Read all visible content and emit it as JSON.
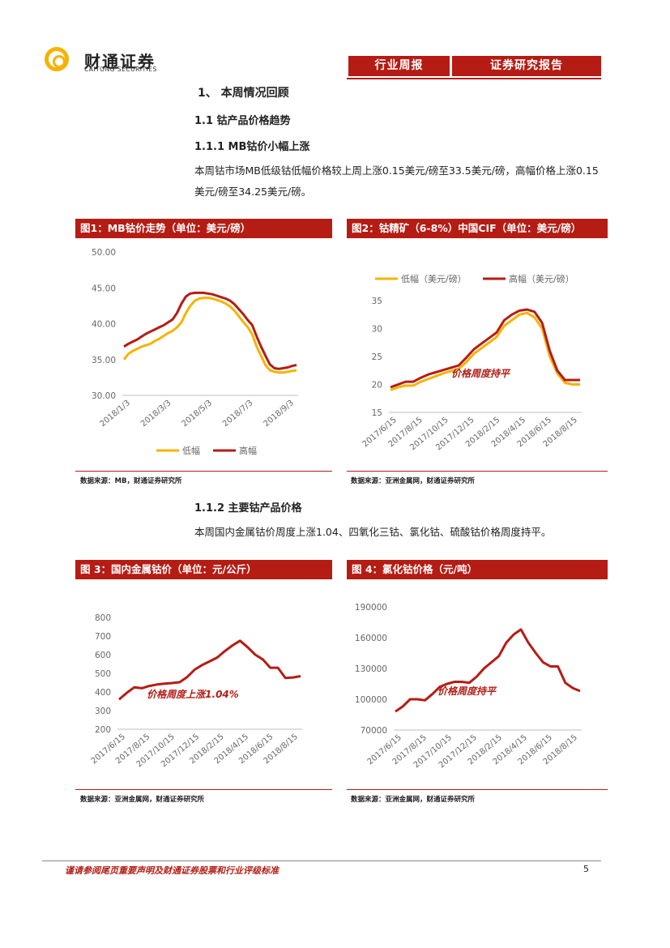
{
  "header": {
    "logo_cn": "财通证券",
    "logo_en": "CAITONG SECURITIES",
    "tab1": "行业周报",
    "tab2": "证券研究报告"
  },
  "section": {
    "h1": "1、 本周情况回顾",
    "h2": "1.1  钴产品价格趋势",
    "h3a": "1.1.1  MB钴价小幅上涨",
    "para1": "本周钴市场MB低级钴低幅价格较上周上涨0.15美元/磅至33.5美元/磅，高幅价格上涨0.15美元/磅至34.25美元/磅。",
    "h3b": "1.1.2  主要钴产品价格",
    "para2": "本周国内金属钴价周度上涨1.04、四氧化三钴、氯化钴、硫酸钴价格周度持平。"
  },
  "figures": {
    "fig1_title": "图1：MB钴价走势（单位：美元/磅）",
    "fig2_title": "图2：钴精矿（6-8%）中国CIF（单位：美元/磅）",
    "fig3_title": "图 3：国内金属钴价（单位：元/公斤）",
    "fig4_title": "图 4：氯化钴价格（元/吨）",
    "src1": "数据来源：MB，财通证券研究所",
    "src2": "数据来源：亚洲金属网，财通证券研究所",
    "src3": "数据来源：亚洲金属网，财通证券研究所",
    "src4": "数据来源：亚洲金属网，财通证券研究所"
  },
  "colors": {
    "accent": "#b51c14",
    "gold": "#f5b300",
    "grid": "#d9d9d9"
  },
  "chart_data": [
    {
      "id": "c1",
      "type": "line",
      "title": "图1：MB钴价走势（单位：美元/磅）",
      "ylim": [
        30,
        50
      ],
      "yticks": [
        30,
        35,
        40,
        45,
        50
      ],
      "ytick_labels": [
        "30.00",
        "35.00",
        "40.00",
        "45.00",
        "50.00"
      ],
      "xtick_labels": [
        "2018/1/3",
        "2018/3/3",
        "2018/5/3",
        "2018/7/3",
        "2018/9/3"
      ],
      "legend": "bottom",
      "series": [
        {
          "name": "低幅",
          "color": "#f5b300",
          "values": [
            35,
            35.8,
            36.2,
            36.5,
            36.8,
            37,
            37.2,
            37.6,
            37.9,
            38.3,
            38.7,
            39,
            39.5,
            40.2,
            41.5,
            42.5,
            43.2,
            43.5,
            43.6,
            43.6,
            43.5,
            43.3,
            43.1,
            42.8,
            42.4,
            41.8,
            41,
            40.2,
            39.5,
            38.5,
            36.8,
            35.5,
            34.2,
            33.5,
            33.3,
            33.2,
            33.2,
            33.3,
            33.4,
            33.5
          ]
        },
        {
          "name": "高幅",
          "color": "#b51c14",
          "values": [
            36.8,
            37.2,
            37.5,
            37.8,
            38.2,
            38.6,
            38.9,
            39.2,
            39.5,
            39.8,
            40.2,
            40.6,
            41.5,
            42.8,
            43.8,
            44.2,
            44.3,
            44.3,
            44.3,
            44.2,
            44.1,
            43.9,
            43.7,
            43.5,
            43.2,
            42.7,
            42,
            41.3,
            40.5,
            39.8,
            38.2,
            36.8,
            35.5,
            34.3,
            33.8,
            33.7,
            33.8,
            33.9,
            34.1,
            34.25
          ]
        }
      ]
    },
    {
      "id": "c2",
      "type": "line",
      "title": "图2：钴精矿（6-8%）中国CIF（单位：美元/磅）",
      "ylim": [
        15,
        35
      ],
      "yticks": [
        15,
        20,
        25,
        30,
        35
      ],
      "ytick_labels": [
        "15",
        "20",
        "25",
        "30",
        "35"
      ],
      "xtick_labels": [
        "2017/6/15",
        "2017/8/15",
        "2017/10/15",
        "2017/12/15",
        "2018/2/15",
        "2018/4/15",
        "2018/6/15",
        "2018/8/15"
      ],
      "legend": "top",
      "annotation": "价格周度持平",
      "series": [
        {
          "name": "低幅（美元/磅）",
          "color": "#f5b300",
          "values": [
            19,
            19.5,
            19.8,
            19.8,
            20.5,
            21,
            21.5,
            22,
            22.4,
            22.8,
            24,
            25.5,
            26.5,
            27.5,
            28.5,
            30.5,
            31.5,
            32.5,
            32.8,
            32,
            30,
            25,
            22,
            20.3,
            20,
            20
          ]
        },
        {
          "name": "高幅（美元/磅）",
          "color": "#b51c14",
          "values": [
            19.5,
            20,
            20.5,
            20.5,
            21.2,
            21.8,
            22.2,
            22.6,
            23,
            23.4,
            24.8,
            26.3,
            27.3,
            28.3,
            29.3,
            31.5,
            32.5,
            33.2,
            33.4,
            33,
            31,
            26,
            22.5,
            20.8,
            20.8,
            20.8
          ]
        }
      ]
    },
    {
      "id": "c3",
      "type": "line",
      "title": "图 3：国内金属钴价（单位：元/公斤）",
      "ylim": [
        200,
        800
      ],
      "yticks": [
        200,
        300,
        400,
        500,
        600,
        700,
        800
      ],
      "ytick_labels": [
        "200",
        "300",
        "400",
        "500",
        "600",
        "700",
        "800"
      ],
      "xtick_labels": [
        "2017/6/15",
        "2017/8/15",
        "2017/10/15",
        "2017/12/15",
        "2018/2/15",
        "2018/4/15",
        "2018/6/15",
        "2018/8/15"
      ],
      "annotation": "价格周度上涨1.04%",
      "series": [
        {
          "name": "国内金属钴价",
          "color": "#b51c14",
          "values": [
            360,
            395,
            425,
            420,
            432,
            440,
            445,
            448,
            452,
            480,
            520,
            545,
            565,
            585,
            620,
            650,
            675,
            640,
            600,
            575,
            530,
            530,
            475,
            478,
            485
          ]
        }
      ]
    },
    {
      "id": "c4",
      "type": "line",
      "title": "图 4：氯化钴价格（元/吨）",
      "ylim": [
        70000,
        190000
      ],
      "yticks": [
        70000,
        100000,
        130000,
        160000,
        190000
      ],
      "ytick_labels": [
        "70000",
        "100000",
        "130000",
        "160000",
        "190000"
      ],
      "xtick_labels": [
        "2017/6/15",
        "2017/8/15",
        "2017/10/15",
        "2017/12/15",
        "2018/2/15",
        "2018/4/15",
        "2018/6/15",
        "2018/8/15"
      ],
      "annotation": "价格周度持平",
      "series": [
        {
          "name": "氯化钴价格",
          "color": "#b51c14",
          "values": [
            88000,
            93000,
            100000,
            100000,
            99000,
            105000,
            112000,
            115000,
            117000,
            117000,
            116000,
            122000,
            130000,
            136000,
            142000,
            155000,
            163000,
            168000,
            155000,
            145000,
            136000,
            132000,
            132000,
            116000,
            111000,
            108000
          ]
        }
      ]
    }
  ],
  "footer": {
    "text": "谨请参阅尾页重要声明及财通证券股票和行业评级标准",
    "page": "5"
  }
}
